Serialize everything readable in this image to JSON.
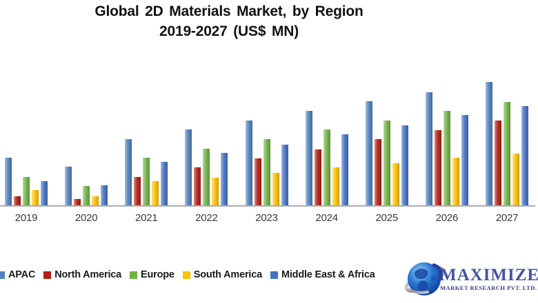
{
  "title": {
    "line1": "Global 2D Materials Market, by Region",
    "line2": "2019-2027 (US$ MN)"
  },
  "chart_data": {
    "type": "bar",
    "title": "Global 2D Materials Market, by Region 2019-2027 (US$ MN)",
    "xlabel": "",
    "ylabel": "US$ MN",
    "value_units": "relative estimate (no y-axis scale shown in image)",
    "ylim": [
      0,
      216
    ],
    "grid": false,
    "legend_position": "bottom",
    "axis_color": "#ABABAB",
    "categories": [
      "2019",
      "2020",
      "2021",
      "2022",
      "2023",
      "2024",
      "2025",
      "2026",
      "2027"
    ],
    "series": [
      {
        "name": "APAC",
        "color": "#4F81BD",
        "values": [
          69,
          56,
          96,
          110,
          123,
          137,
          151,
          164,
          179
        ]
      },
      {
        "name": "North America",
        "color": "#B21E13",
        "values": [
          13,
          9,
          41,
          55,
          68,
          81,
          96,
          109,
          123
        ]
      },
      {
        "name": "Europe",
        "color": "#70B244",
        "values": [
          41,
          28,
          69,
          82,
          96,
          110,
          123,
          137,
          150
        ]
      },
      {
        "name": "South America",
        "color": "#FFC000",
        "values": [
          22,
          13,
          35,
          40,
          47,
          55,
          61,
          69,
          75
        ]
      },
      {
        "name": "Middle East & Africa",
        "color": "#4472C4",
        "values": [
          35,
          29,
          63,
          76,
          88,
          103,
          116,
          131,
          144
        ]
      }
    ]
  },
  "logo": {
    "name": "MAXIMIZE",
    "subtitle": "MARKET RESEARCH PVT. LTD."
  }
}
